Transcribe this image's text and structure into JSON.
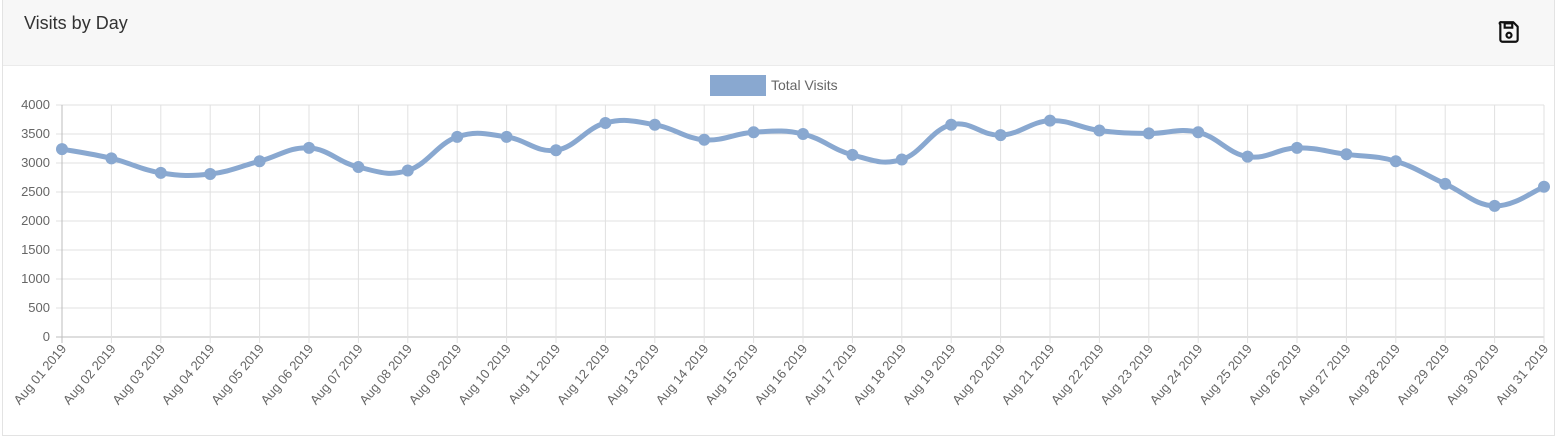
{
  "card": {
    "title": "Visits by Day",
    "save_icon": "floppy-disk-icon"
  },
  "colors": {
    "series": "#89a8d0",
    "grid": "#e0e0e0",
    "text": "#666666"
  },
  "chart_data": {
    "type": "line",
    "title": "",
    "xlabel": "",
    "ylabel": "",
    "ylim": [
      0,
      4000
    ],
    "yticks": [
      0,
      500,
      1000,
      1500,
      2000,
      2500,
      3000,
      3500,
      4000
    ],
    "yticks_text": [
      "0",
      "500",
      "1000",
      "1500",
      "2000",
      "2500",
      "3000",
      "3500",
      "4000"
    ],
    "grid": true,
    "legend_position": "top-center",
    "categories": [
      "Aug 01 2019",
      "Aug 02 2019",
      "Aug 03 2019",
      "Aug 04 2019",
      "Aug 05 2019",
      "Aug 06 2019",
      "Aug 07 2019",
      "Aug 08 2019",
      "Aug 09 2019",
      "Aug 10 2019",
      "Aug 11 2019",
      "Aug 12 2019",
      "Aug 13 2019",
      "Aug 14 2019",
      "Aug 15 2019",
      "Aug 16 2019",
      "Aug 17 2019",
      "Aug 18 2019",
      "Aug 19 2019",
      "Aug 20 2019",
      "Aug 21 2019",
      "Aug 22 2019",
      "Aug 23 2019",
      "Aug 24 2019",
      "Aug 25 2019",
      "Aug 26 2019",
      "Aug 27 2019",
      "Aug 28 2019",
      "Aug 29 2019",
      "Aug 30 2019",
      "Aug 31 2019"
    ],
    "series": [
      {
        "name": "Total Visits",
        "values": [
          3240,
          3080,
          2830,
          2810,
          3030,
          3260,
          2930,
          2870,
          3450,
          3450,
          3220,
          3690,
          3660,
          3400,
          3530,
          3500,
          3140,
          3060,
          3660,
          3480,
          3730,
          3560,
          3510,
          3530,
          3110,
          3260,
          3150,
          3030,
          2640,
          2260,
          2590
        ]
      }
    ]
  }
}
